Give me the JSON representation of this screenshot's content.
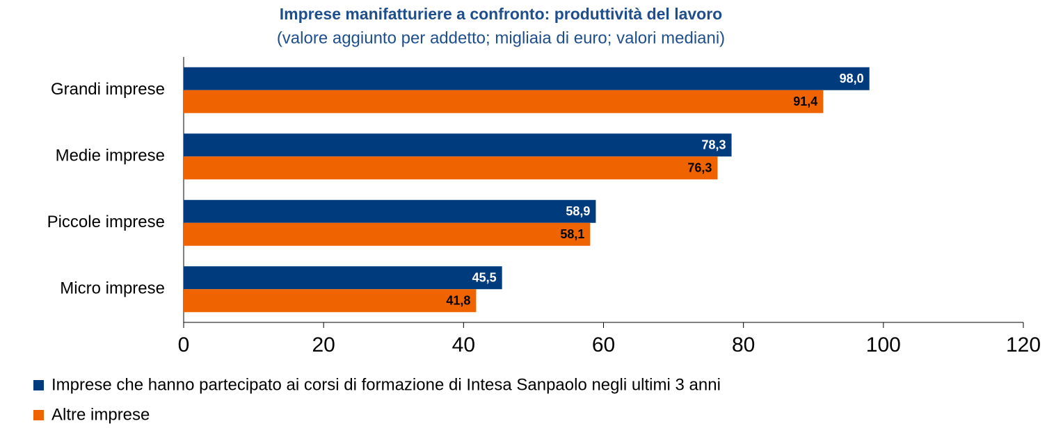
{
  "chart_data": {
    "type": "bar",
    "orientation": "horizontal",
    "title": "Imprese manifatturiere a confronto: produttività del lavoro",
    "subtitle": "(valore aggiunto per addetto; migliaia di euro; valori mediani)",
    "categories": [
      "Grandi imprese",
      "Medie imprese",
      "Piccole imprese",
      "Micro imprese"
    ],
    "series": [
      {
        "name": "Imprese che hanno partecipato ai corsi di formazione di Intesa Sanpaolo negli ultimi 3 anni",
        "color": "#003c7d",
        "label_color": "#ffffff",
        "values": [
          98.0,
          78.3,
          58.9,
          45.5
        ],
        "value_labels": [
          "98,0",
          "78,3",
          "58,9",
          "45,5"
        ]
      },
      {
        "name": "Altre imprese",
        "color": "#f06400",
        "label_color": "#000000",
        "values": [
          91.4,
          76.3,
          58.1,
          41.8
        ],
        "value_labels": [
          "91,4",
          "76,3",
          "58,1",
          "41,8"
        ]
      }
    ],
    "xlim": [
      0,
      120
    ],
    "xticks": [
      0,
      20,
      40,
      60,
      80,
      100,
      120
    ],
    "grid": false,
    "legend": "bottom-left"
  }
}
